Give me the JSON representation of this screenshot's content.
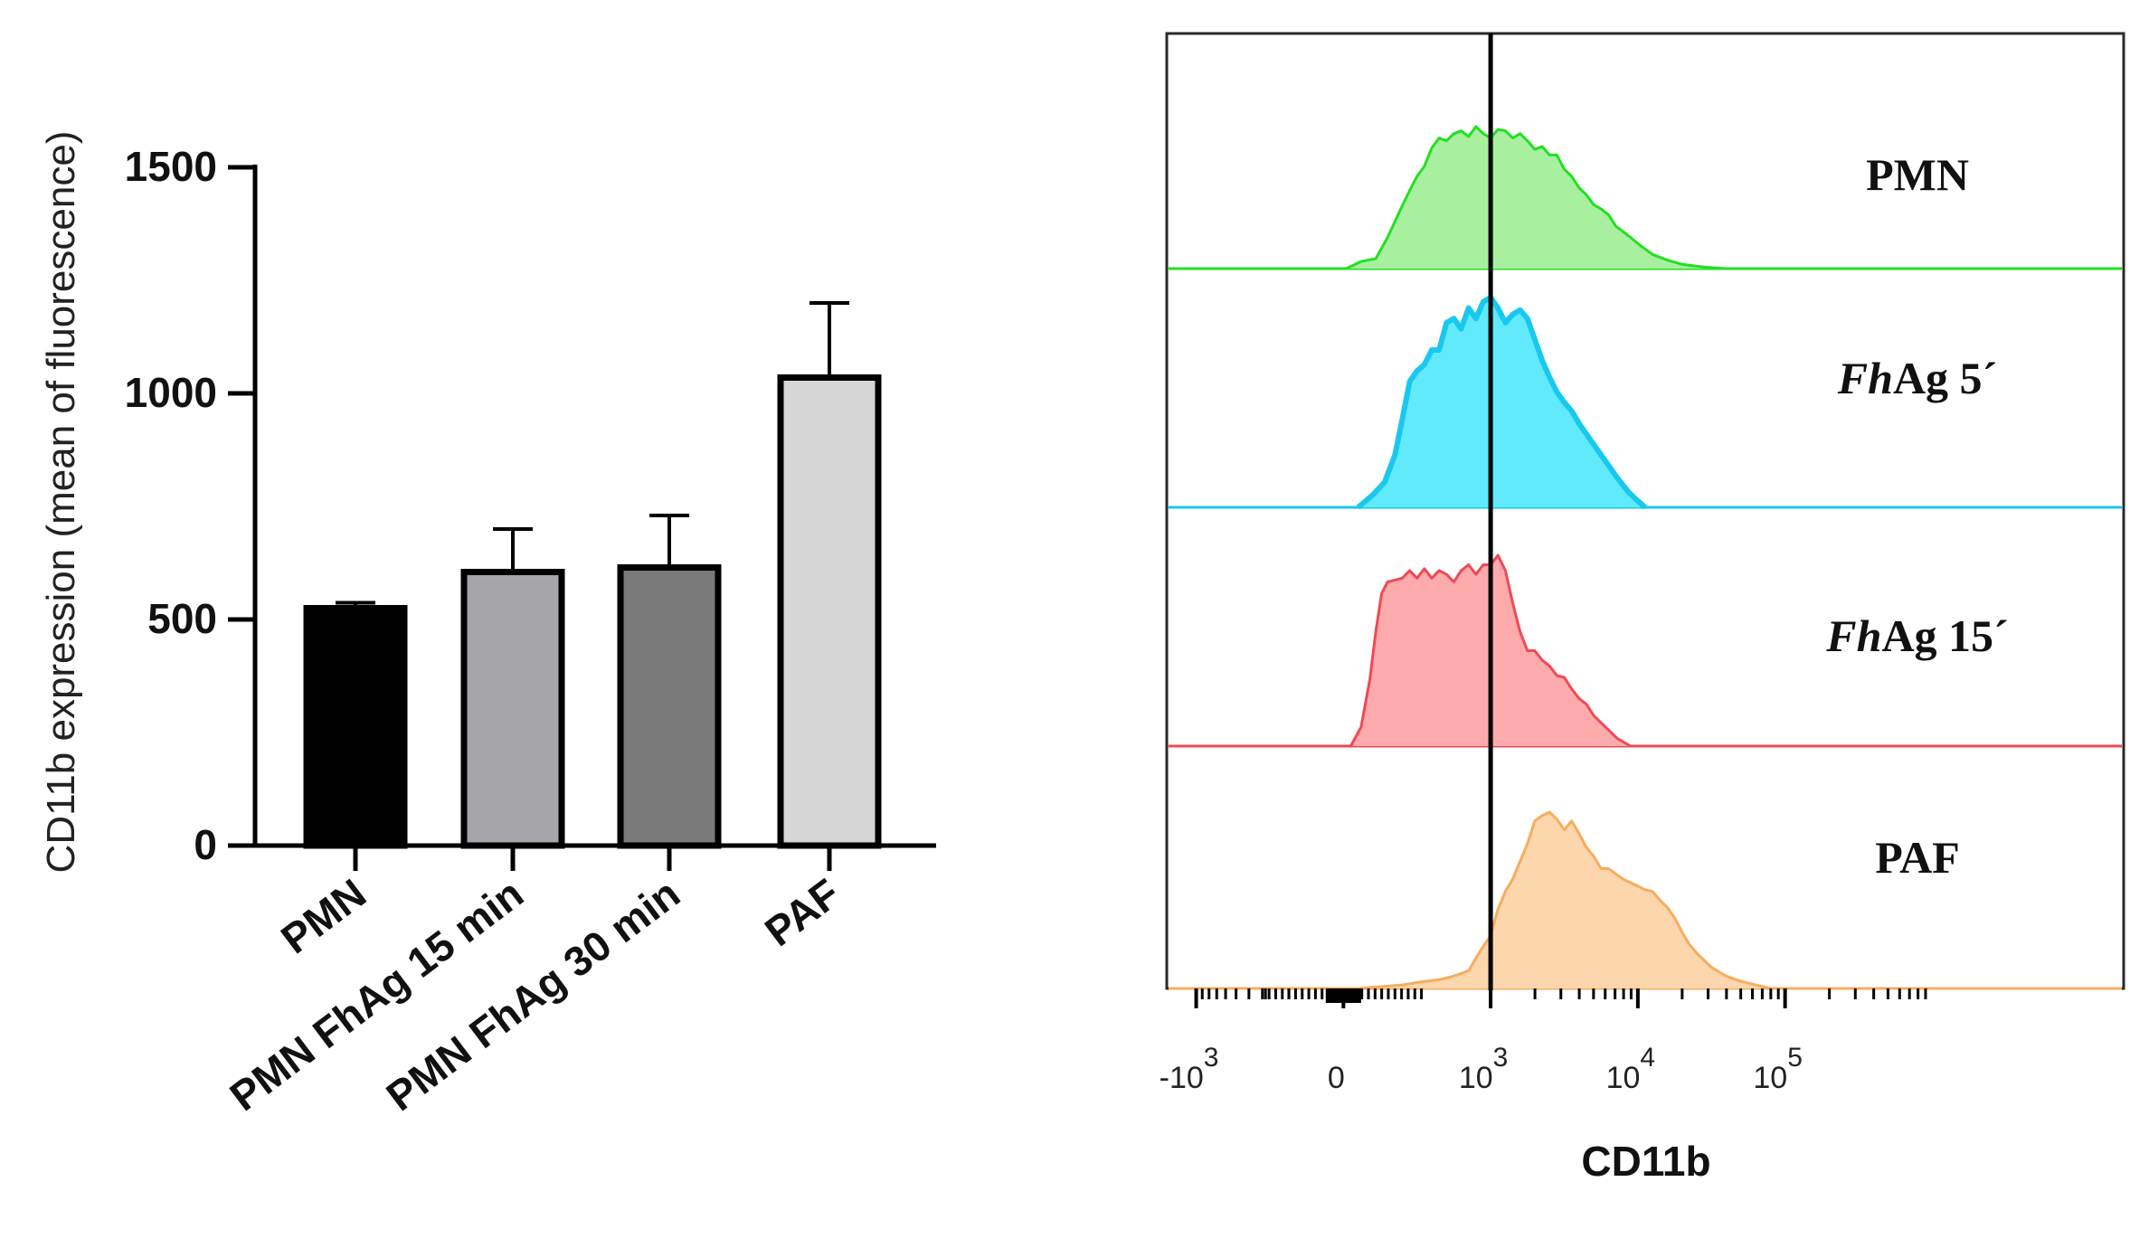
{
  "chart_data": [
    {
      "type": "bar",
      "title": "",
      "xlabel": "",
      "ylabel": "CD11b expression (mean of fluorescence)",
      "ylim": [
        0,
        1500
      ],
      "yticks": [
        "0",
        "500",
        "1000",
        "1500"
      ],
      "categories": [
        "PMN",
        "PMN FhAg 15 min",
        "PMN FhAg 30 min",
        "PAF"
      ],
      "values": [
        525,
        605,
        615,
        1035
      ],
      "errors": [
        12,
        95,
        115,
        165
      ],
      "colors": [
        "#000000",
        "#a6a6aa",
        "#7a7a7a",
        "#d6d6d6"
      ]
    },
    {
      "type": "area",
      "title": "",
      "xlabel": "CD11b",
      "xlim": [
        -1.2,
        5.3
      ],
      "xtick_values": [
        -1,
        0,
        1,
        2,
        3
      ],
      "xtick_bases": [
        "-10",
        "0",
        "10",
        "10",
        "10"
      ],
      "xtick_exponents": [
        "3",
        "",
        "3",
        "4",
        "5"
      ],
      "gate_line_x": 1.0,
      "series": [
        {
          "name": "PMN",
          "label_prefix": "",
          "label_suffix": "PMN",
          "color": "#22e022",
          "fill": "#a8f0a0",
          "x": [
            0.02,
            0.12,
            0.22,
            0.3,
            0.38,
            0.45,
            0.5,
            0.55,
            0.6,
            0.65,
            0.7,
            0.75,
            0.8,
            0.85,
            0.9,
            0.95,
            1.0,
            1.05,
            1.1,
            1.15,
            1.2,
            1.25,
            1.3,
            1.35,
            1.4,
            1.45,
            1.5,
            1.55,
            1.6,
            1.65,
            1.7,
            1.75,
            1.8,
            1.85,
            1.9,
            1.95,
            2.02,
            2.1,
            2.2,
            2.3,
            2.45,
            2.6
          ],
          "y": [
            0.0,
            0.05,
            0.07,
            0.22,
            0.4,
            0.55,
            0.65,
            0.72,
            0.85,
            0.92,
            0.9,
            0.95,
            0.97,
            0.93,
            1.0,
            0.95,
            0.92,
            0.98,
            0.97,
            0.92,
            0.95,
            0.9,
            0.84,
            0.86,
            0.8,
            0.8,
            0.7,
            0.65,
            0.57,
            0.52,
            0.45,
            0.42,
            0.38,
            0.3,
            0.26,
            0.22,
            0.16,
            0.1,
            0.06,
            0.03,
            0.01,
            0.0
          ]
        },
        {
          "name": "FhAg 5′",
          "label_prefix": "Fh",
          "label_suffix": "Ag 5´",
          "color": "#19c8ee",
          "fill": "#60eafa",
          "x": [
            0.1,
            0.2,
            0.28,
            0.35,
            0.4,
            0.45,
            0.5,
            0.55,
            0.6,
            0.65,
            0.7,
            0.75,
            0.8,
            0.85,
            0.9,
            0.95,
            1.0,
            1.05,
            1.1,
            1.15,
            1.2,
            1.25,
            1.3,
            1.35,
            1.4,
            1.45,
            1.5,
            1.55,
            1.6,
            1.65,
            1.7,
            1.78,
            1.86,
            1.94,
            2.0,
            2.05
          ],
          "y": [
            0.0,
            0.06,
            0.12,
            0.25,
            0.42,
            0.6,
            0.65,
            0.68,
            0.75,
            0.75,
            0.88,
            0.9,
            0.85,
            0.95,
            0.9,
            0.98,
            1.0,
            0.95,
            0.88,
            0.92,
            0.94,
            0.9,
            0.8,
            0.7,
            0.62,
            0.55,
            0.5,
            0.46,
            0.4,
            0.35,
            0.3,
            0.22,
            0.14,
            0.07,
            0.03,
            0.0
          ]
        },
        {
          "name": "FhAg 15′",
          "label_prefix": "Fh",
          "label_suffix": "Ag 15´",
          "color": "#ee4a55",
          "fill": "#fdaaad",
          "x": [
            0.05,
            0.12,
            0.18,
            0.22,
            0.26,
            0.3,
            0.35,
            0.4,
            0.45,
            0.5,
            0.55,
            0.6,
            0.65,
            0.7,
            0.75,
            0.8,
            0.85,
            0.9,
            0.95,
            1.0,
            1.05,
            1.1,
            1.15,
            1.2,
            1.25,
            1.3,
            1.35,
            1.4,
            1.45,
            1.5,
            1.55,
            1.6,
            1.65,
            1.7,
            1.78,
            1.86,
            1.95
          ],
          "y": [
            0.0,
            0.1,
            0.35,
            0.6,
            0.8,
            0.86,
            0.87,
            0.88,
            0.92,
            0.88,
            0.93,
            0.88,
            0.92,
            0.9,
            0.86,
            0.92,
            0.95,
            0.9,
            0.95,
            0.95,
            1.0,
            0.92,
            0.75,
            0.6,
            0.5,
            0.5,
            0.45,
            0.42,
            0.37,
            0.36,
            0.3,
            0.25,
            0.22,
            0.16,
            0.1,
            0.04,
            0.0
          ]
        },
        {
          "name": "PAF",
          "label_prefix": "",
          "label_suffix": "PAF",
          "color": "#f6ad5e",
          "fill": "#fcd6ad",
          "x": [
            -0.2,
            0.1,
            0.4,
            0.55,
            0.65,
            0.75,
            0.85,
            0.92,
            1.0,
            1.05,
            1.1,
            1.15,
            1.2,
            1.25,
            1.3,
            1.35,
            1.4,
            1.45,
            1.5,
            1.55,
            1.6,
            1.65,
            1.7,
            1.75,
            1.8,
            1.85,
            1.9,
            1.95,
            2.0,
            2.05,
            2.1,
            2.15,
            2.2,
            2.25,
            2.3,
            2.35,
            2.4,
            2.45,
            2.5,
            2.6,
            2.7,
            2.8,
            2.9
          ],
          "y": [
            0.0,
            0.0,
            0.02,
            0.04,
            0.05,
            0.07,
            0.1,
            0.2,
            0.3,
            0.45,
            0.55,
            0.62,
            0.72,
            0.82,
            0.95,
            0.98,
            1.0,
            0.96,
            0.9,
            0.95,
            0.88,
            0.8,
            0.75,
            0.68,
            0.68,
            0.65,
            0.62,
            0.6,
            0.58,
            0.56,
            0.55,
            0.5,
            0.46,
            0.4,
            0.32,
            0.25,
            0.2,
            0.16,
            0.12,
            0.07,
            0.04,
            0.02,
            0.0
          ]
        }
      ]
    }
  ]
}
